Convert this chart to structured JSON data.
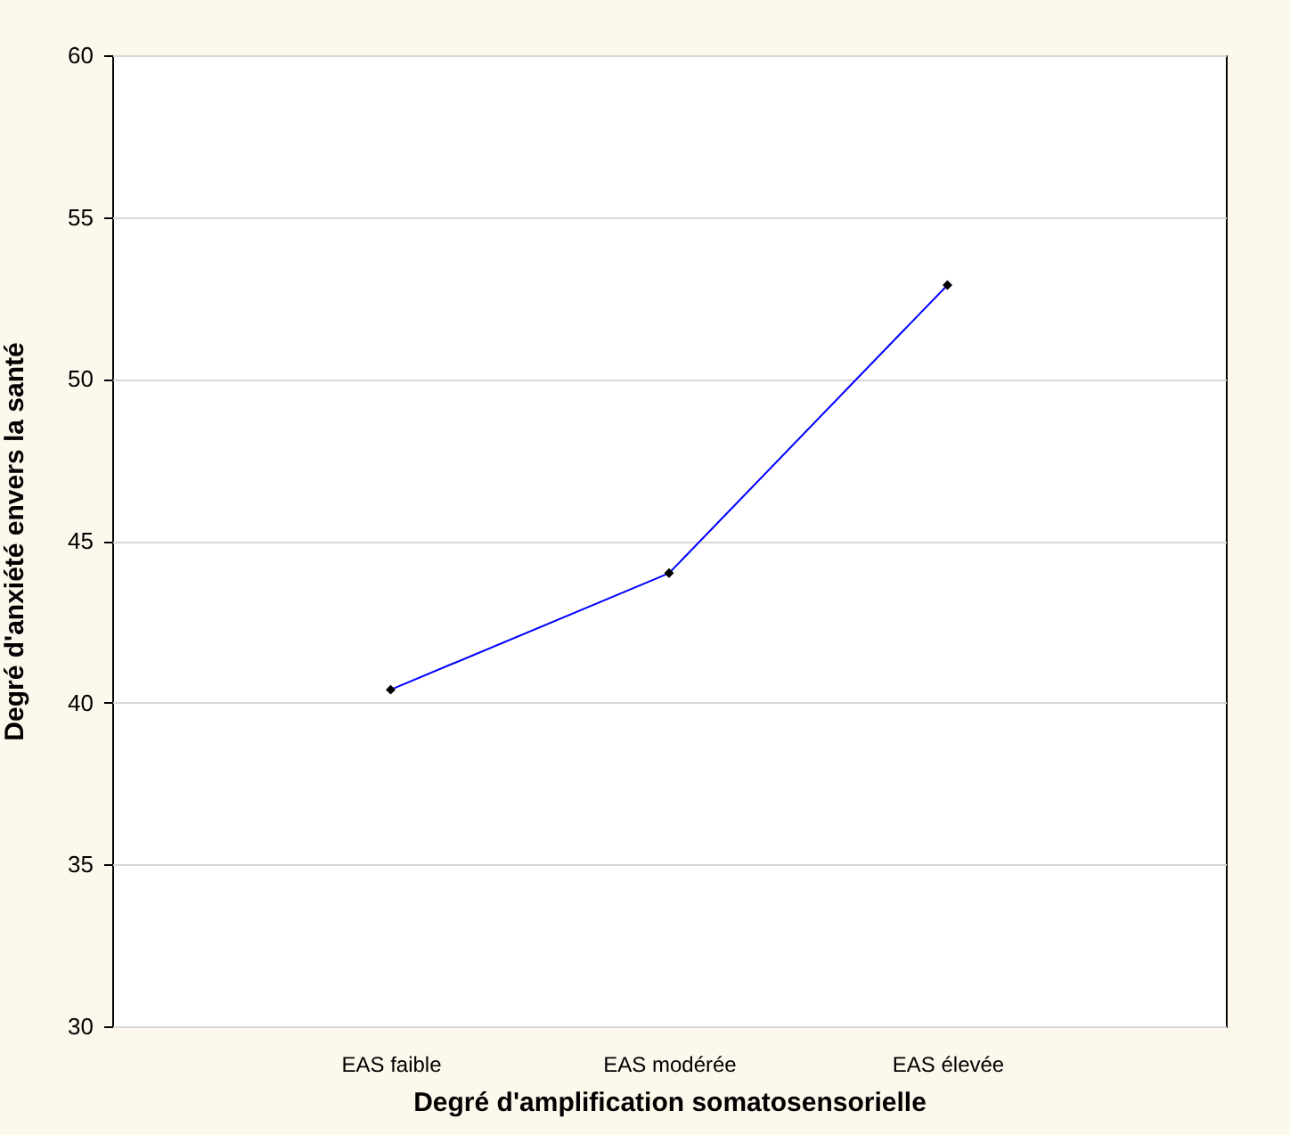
{
  "chart_data": {
    "type": "line",
    "xlabel": "Degré d'amplification somatosensorielle",
    "ylabel": "Degré d'anxiété envers la santé",
    "categories": [
      "EAS faible",
      "EAS modérée",
      "EAS élevée"
    ],
    "series": [
      {
        "color": "#0000ff",
        "values": [
          40.4,
          44.0,
          52.9
        ]
      }
    ],
    "ylim": [
      30,
      60
    ],
    "yticks": [
      30,
      35,
      40,
      45,
      50,
      55,
      60
    ],
    "grid": "y",
    "marker": "diamond",
    "line_style": "solid"
  }
}
